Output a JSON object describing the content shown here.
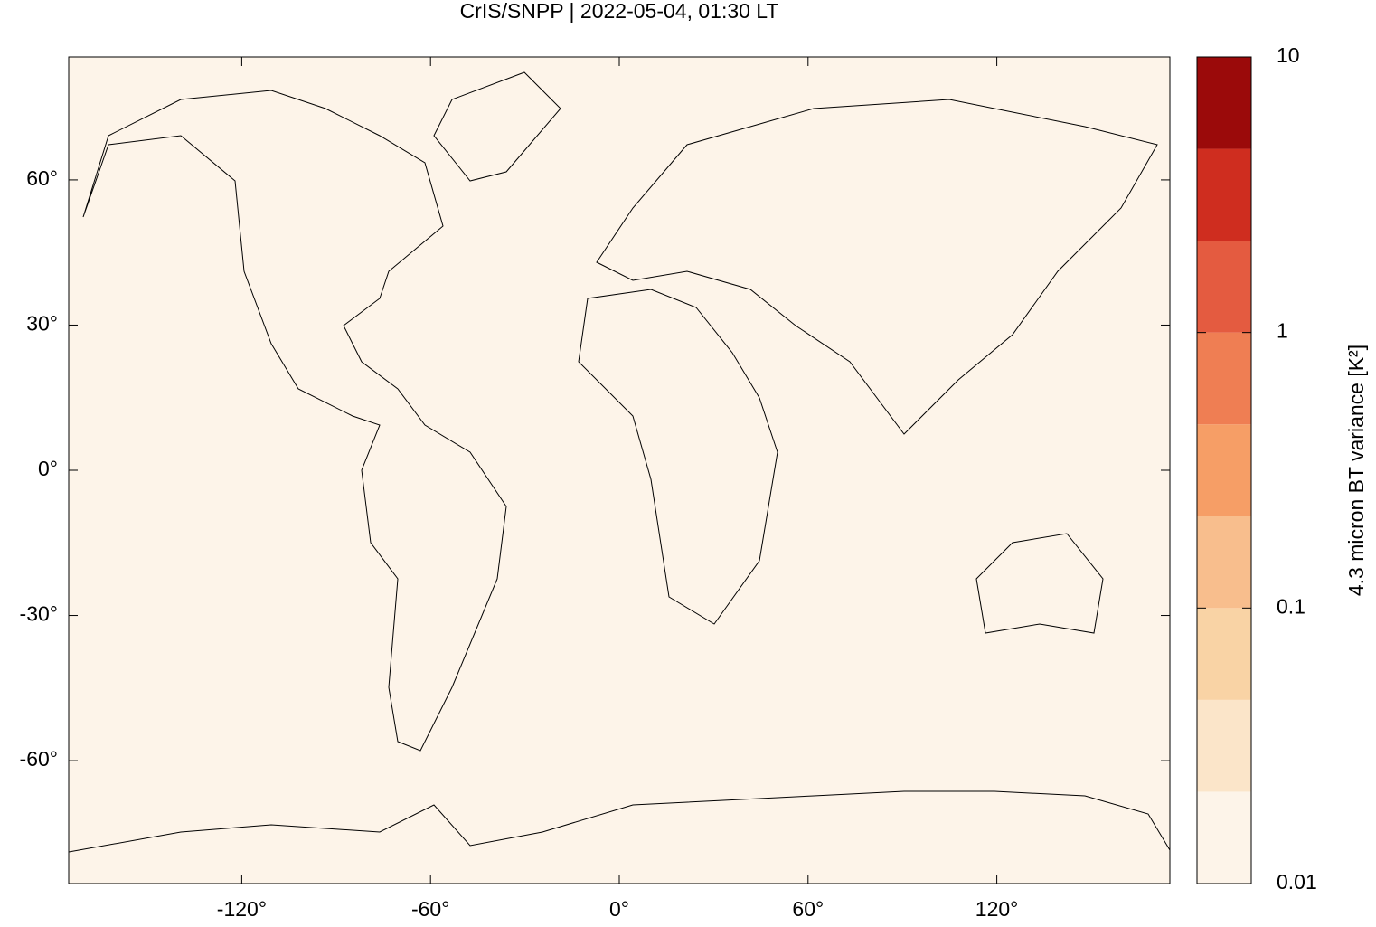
{
  "chart_data": {
    "type": "map",
    "title": "CrIS/SNPP | 2022-05-04, 01:30 LT",
    "background": "#fdf4e9",
    "xlim": [
      -175,
      175
    ],
    "ylim": [
      -85.4,
      85.4
    ],
    "xticks": [
      {
        "value": -120,
        "label": "-120°"
      },
      {
        "value": -60,
        "label": "-60°"
      },
      {
        "value": 0,
        "label": "0°"
      },
      {
        "value": 60,
        "label": "60°"
      },
      {
        "value": 120,
        "label": "120°"
      }
    ],
    "yticks": [
      {
        "value": -60,
        "label": "-60°"
      },
      {
        "value": -30,
        "label": "-30°"
      },
      {
        "value": 0,
        "label": "0°"
      },
      {
        "value": 30,
        "label": "30°"
      },
      {
        "value": 60,
        "label": "60°"
      }
    ],
    "colorbar": {
      "label": "4.3 micron BT variance [K²]",
      "scale": "log",
      "lim": [
        0.01,
        10
      ],
      "ticks": [
        0.01,
        0.1,
        1,
        10
      ],
      "colors": [
        "#fdf4e9",
        "#fbe5c9",
        "#f9d3a5",
        "#f8be8d",
        "#f69e66",
        "#ef7e53",
        "#e45b40",
        "#cf2d1f",
        "#9b0a0a"
      ]
    }
  }
}
